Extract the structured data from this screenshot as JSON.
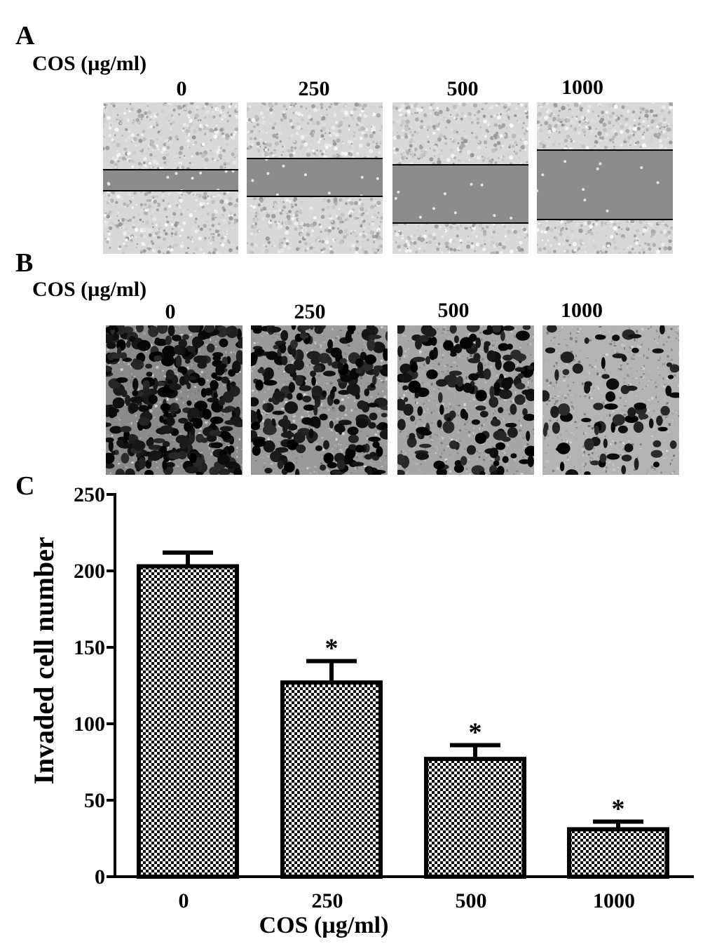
{
  "panel_a": {
    "letter": "A",
    "condition_label": "COS (µg/ml)",
    "doses": [
      "0",
      "250",
      "500",
      "1000"
    ]
  },
  "panel_b": {
    "letter": "B",
    "condition_label": "COS (µg/ml)",
    "doses": [
      "0",
      "250",
      "500",
      "1000"
    ]
  },
  "panel_c": {
    "letter": "C"
  },
  "chart_data": {
    "type": "bar",
    "categories": [
      "0",
      "250",
      "500",
      "1000"
    ],
    "values": [
      203,
      127,
      77,
      31
    ],
    "errors": [
      9,
      14,
      9,
      5
    ],
    "significance": [
      "",
      "*",
      "*",
      "*"
    ],
    "xlabel": "COS (µg/ml)",
    "ylabel": "Invaded cell number",
    "ylim": [
      0,
      250
    ],
    "yticks": [
      0,
      50,
      100,
      150,
      200,
      250
    ],
    "bar_pattern": "checkered",
    "grid": false,
    "legend": "none"
  },
  "colors": {
    "wound_gap": "#8c8c8c",
    "cells_light": "#d8d8d8",
    "stain_dark": "#1a1a1a",
    "axis": "#000000"
  }
}
